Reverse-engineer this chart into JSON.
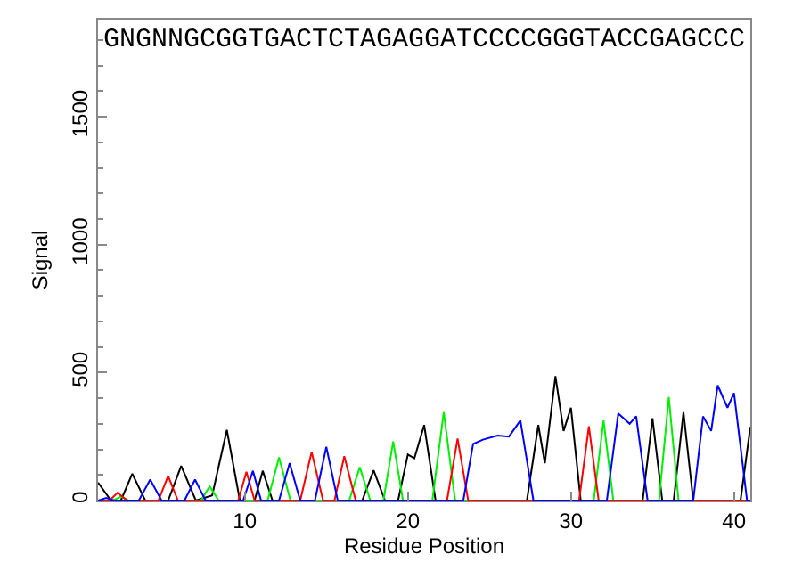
{
  "chart_data": {
    "type": "line",
    "xlabel": "Residue Position",
    "ylabel": "Signal",
    "xlim": [
      1,
      41
    ],
    "xticks": [
      10,
      20,
      30,
      40
    ],
    "ylim": [
      0,
      1880
    ],
    "yticks": [
      0,
      500,
      1000,
      1500
    ],
    "annotations": [
      "GNGNNGCGGTGACTCTAGAGGATCCCCGGGTACCGAGCCC"
    ],
    "marker": "none",
    "line_style": "solid",
    "series": [
      {
        "color": "#000000",
        "x": [
          1,
          1.8,
          2.4,
          3.1,
          3.9,
          5.3,
          6.1,
          7.0,
          8.0,
          8.9,
          9.7,
          10.6,
          11.1,
          11.7,
          17.2,
          17.9,
          18.6,
          19.4,
          20.0,
          20.4,
          21.0,
          21.7,
          27.3,
          28.0,
          28.4,
          29.05,
          29.55,
          30.0,
          30.6,
          34.4,
          35.0,
          35.6,
          36.3,
          36.9,
          37.5,
          40.4,
          41
        ],
        "values": [
          70,
          0,
          0,
          105,
          0,
          0,
          135,
          0,
          20,
          276,
          0,
          0,
          116,
          0,
          0,
          118,
          0,
          0,
          180,
          165,
          295,
          0,
          0,
          295,
          146,
          486,
          272,
          363,
          0,
          0,
          322,
          0,
          0,
          345,
          0,
          0,
          288
        ]
      },
      {
        "color": "#00ee00",
        "x": [
          1,
          1.9,
          2.4,
          2.9,
          7.3,
          7.85,
          8.4,
          11.4,
          12.1,
          12.8,
          16.4,
          17.05,
          17.7,
          18.5,
          19.1,
          19.7,
          21.5,
          22.2,
          22.9,
          31.4,
          32.0,
          32.6,
          35.4,
          36.0,
          36.6,
          41
        ],
        "values": [
          0,
          0,
          15,
          0,
          0,
          55,
          0,
          0,
          169,
          0,
          0,
          130,
          0,
          0,
          231,
          0,
          0,
          345,
          0,
          0,
          313,
          0,
          0,
          404,
          0,
          0
        ]
      },
      {
        "color": "#ff0000",
        "x": [
          1,
          1.7,
          2.2,
          2.8,
          4.7,
          5.3,
          5.9,
          9.6,
          10.1,
          10.6,
          13.4,
          14.1,
          14.8,
          15.5,
          16.1,
          16.8,
          22.4,
          23.05,
          23.7,
          30.5,
          31.1,
          31.7,
          41
        ],
        "values": [
          0,
          0,
          30,
          0,
          0,
          96,
          0,
          0,
          112,
          0,
          0,
          190,
          0,
          0,
          173,
          0,
          0,
          242,
          0,
          0,
          290,
          0,
          0
        ]
      },
      {
        "color": "#0000ff",
        "x": [
          1,
          1.5,
          2.0,
          3.5,
          4.2,
          4.9,
          6.3,
          6.95,
          7.6,
          9.9,
          10.5,
          11.0,
          12.1,
          12.75,
          13.4,
          14.3,
          15.0,
          15.7,
          23.4,
          24.0,
          24.6,
          25.5,
          26.2,
          26.9,
          27.7,
          32.2,
          32.9,
          33.6,
          34.0,
          34.7,
          37.5,
          38.1,
          38.6,
          39.0,
          39.6,
          40.0,
          40.8,
          41
        ],
        "values": [
          0,
          10,
          0,
          0,
          82,
          0,
          0,
          82,
          0,
          0,
          116,
          0,
          0,
          146,
          0,
          0,
          210,
          0,
          0,
          221,
          238,
          254,
          250,
          313,
          0,
          0,
          340,
          300,
          329,
          0,
          0,
          329,
          272,
          450,
          363,
          420,
          0,
          0
        ]
      }
    ]
  }
}
